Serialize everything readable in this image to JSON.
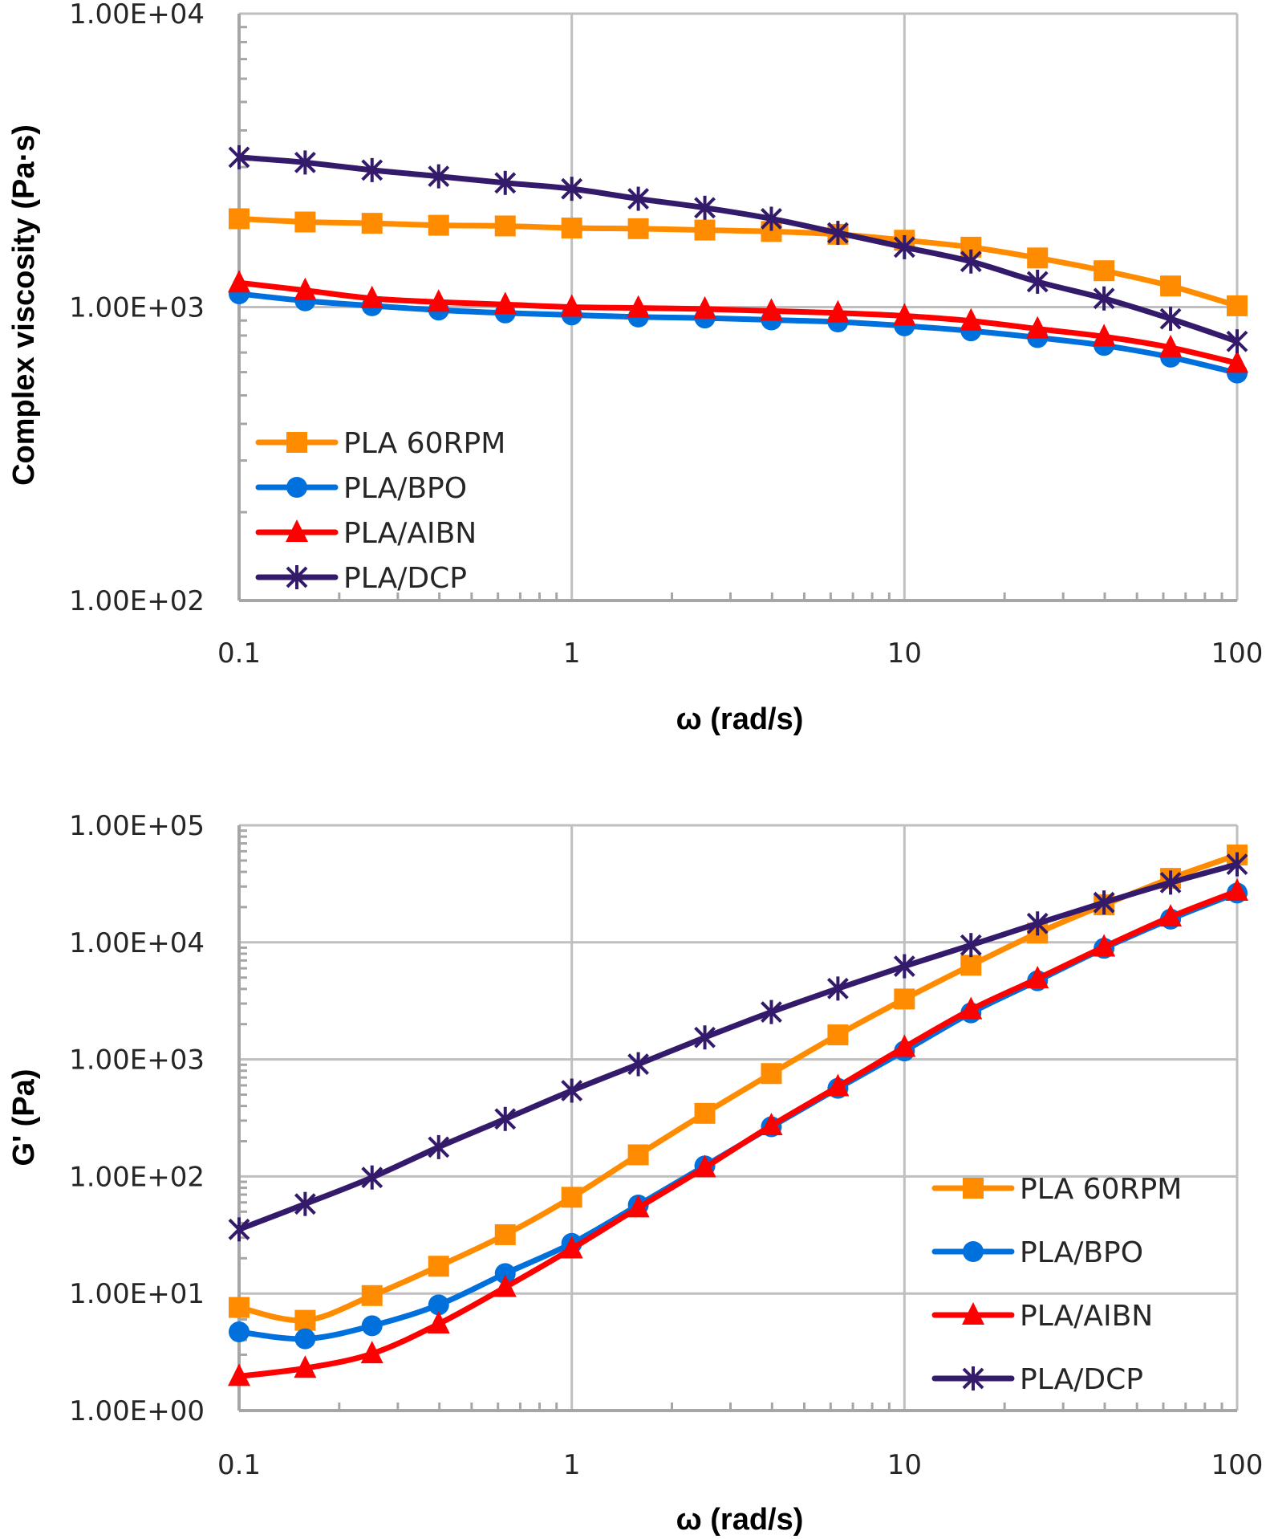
{
  "chart_data": [
    {
      "type": "line",
      "id": "viscosity",
      "title": "",
      "xlabel": "ω (rad/s)",
      "ylabel": "Complex viscosity (Pa·s)",
      "xscale": "log",
      "yscale": "log",
      "xlim": [
        0.1,
        100
      ],
      "ylim": [
        100,
        10000
      ],
      "grid": true,
      "legend_position": "bottom-left",
      "x_tick_labels": [
        "0.1",
        "1",
        "10",
        "100"
      ],
      "y_tick_labels": [
        "1.00E+02",
        "1.00E+03",
        "1.00E+04"
      ],
      "x": [
        0.1,
        0.158,
        0.251,
        0.398,
        0.631,
        1,
        1.585,
        2.512,
        3.981,
        6.31,
        10,
        15.85,
        25.12,
        39.81,
        63.1,
        100
      ],
      "series": [
        {
          "name": "PLA  60RPM",
          "color": "#ff8c00",
          "marker": "square",
          "values": [
            2000,
            1950,
            1930,
            1900,
            1890,
            1860,
            1850,
            1830,
            1810,
            1770,
            1690,
            1600,
            1470,
            1330,
            1180,
            1010
          ]
        },
        {
          "name": "PLA/BPO",
          "color": "#0070dd",
          "marker": "circle",
          "values": [
            1110,
            1050,
            1010,
            977,
            955,
            940,
            925,
            918,
            904,
            890,
            863,
            830,
            787,
            740,
            675,
            596
          ]
        },
        {
          "name": "PLA/AIBN",
          "color": "#ff0000",
          "marker": "triangle",
          "values": [
            1210,
            1140,
            1070,
            1040,
            1020,
            1000,
            993,
            985,
            970,
            955,
            933,
            897,
            843,
            793,
            728,
            644
          ]
        },
        {
          "name": "PLA/DCP",
          "color": "#341a6b",
          "marker": "asterisk",
          "values": [
            3240,
            3110,
            2930,
            2790,
            2650,
            2530,
            2340,
            2180,
            2000,
            1790,
            1600,
            1430,
            1220,
            1070,
            912,
            764
          ]
        }
      ]
    },
    {
      "type": "line",
      "id": "storage-modulus",
      "title": "",
      "xlabel": "ω (rad/s)",
      "ylabel": "G' (Pa)",
      "xscale": "log",
      "yscale": "log",
      "xlim": [
        0.1,
        100
      ],
      "ylim": [
        1,
        100000
      ],
      "grid": true,
      "legend_position": "bottom-right",
      "x_tick_labels": [
        "0.1",
        "1",
        "10",
        "100"
      ],
      "y_tick_labels": [
        "1.00E+00",
        "1.00E+01",
        "1.00E+02",
        "1.00E+03",
        "1.00E+04",
        "1.00E+05"
      ],
      "x": [
        0.1,
        0.158,
        0.251,
        0.398,
        0.631,
        1,
        1.585,
        2.512,
        3.981,
        6.31,
        10,
        15.85,
        25.12,
        39.81,
        63.1,
        100
      ],
      "series": [
        {
          "name": "PLA  60RPM",
          "color": "#ff8c00",
          "marker": "square",
          "values": [
            7.6,
            5.9,
            9.6,
            17.1,
            31.8,
            66.4,
            153,
            346,
            757,
            1620,
            3280,
            6370,
            12000,
            20900,
            35200,
            55800
          ]
        },
        {
          "name": "PLA/BPO",
          "color": "#0070dd",
          "marker": "circle",
          "values": [
            4.7,
            4.1,
            5.3,
            8.0,
            14.8,
            26.8,
            57,
            123,
            266,
            566,
            1180,
            2500,
            4700,
            8900,
            15800,
            26400
          ]
        },
        {
          "name": "PLA/AIBN",
          "color": "#ff0000",
          "marker": "triangle",
          "values": [
            1.96,
            2.3,
            3.06,
            5.5,
            11.3,
            24.1,
            54,
            119,
            272,
            585,
            1270,
            2660,
            4900,
            9140,
            16500,
            27400
          ]
        },
        {
          "name": "PLA/DCP",
          "color": "#341a6b",
          "marker": "asterisk",
          "values": [
            35.3,
            58.2,
            98,
            178,
            310,
            541,
            910,
            1540,
            2540,
            4030,
            6250,
            9480,
            14500,
            21900,
            32400,
            46400
          ]
        }
      ]
    }
  ]
}
